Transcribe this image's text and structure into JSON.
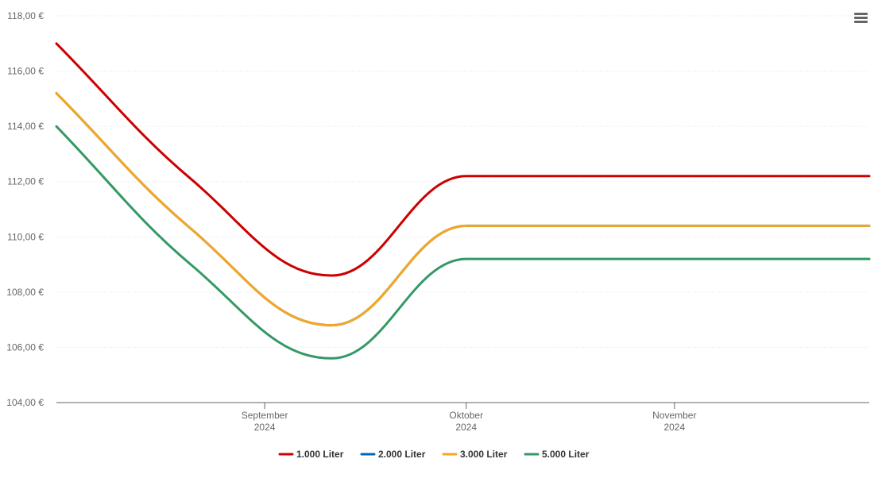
{
  "chart_data": {
    "type": "line",
    "title": "",
    "xlabel": "",
    "ylabel": "",
    "x": [
      "2024-08-01",
      "2024-08-21",
      "2024-09-11",
      "2024-10-01",
      "2024-10-21",
      "2024-11-30"
    ],
    "series": [
      {
        "name": "1.000 Liter",
        "color": "#cc0000",
        "values": [
          117.0,
          112.1,
          108.6,
          112.2,
          112.2,
          112.2
        ]
      },
      {
        "name": "2.000 Liter",
        "color": "#0066b3",
        "values": [
          115.2,
          110.3,
          106.8,
          110.4,
          110.4,
          110.4
        ]
      },
      {
        "name": "3.000 Liter",
        "color": "#f5a623",
        "values": [
          115.2,
          110.3,
          106.8,
          110.4,
          110.4,
          110.4
        ]
      },
      {
        "name": "5.000 Liter",
        "color": "#339966",
        "values": [
          114.0,
          109.0,
          105.6,
          109.2,
          109.2,
          109.2
        ]
      }
    ],
    "xlim": [
      "2024-08-01",
      "2024-11-30"
    ],
    "ylim": [
      104,
      118
    ],
    "yticks": [
      104,
      106,
      108,
      110,
      112,
      114,
      116,
      118
    ],
    "ytick_labels": [
      "104,00 €",
      "106,00 €",
      "108,00 €",
      "110,00 €",
      "112,00 €",
      "114,00 €",
      "116,00 €",
      "118,00 €"
    ],
    "xticks": [
      {
        "date": "2024-09-01",
        "month": "September",
        "year": "2024"
      },
      {
        "date": "2024-10-01",
        "month": "Oktober",
        "year": "2024"
      },
      {
        "date": "2024-11-01",
        "month": "November",
        "year": "2024"
      }
    ],
    "grid": true,
    "legend_position": "bottom-center"
  },
  "menu": {
    "icon": "hamburger-menu-icon"
  }
}
